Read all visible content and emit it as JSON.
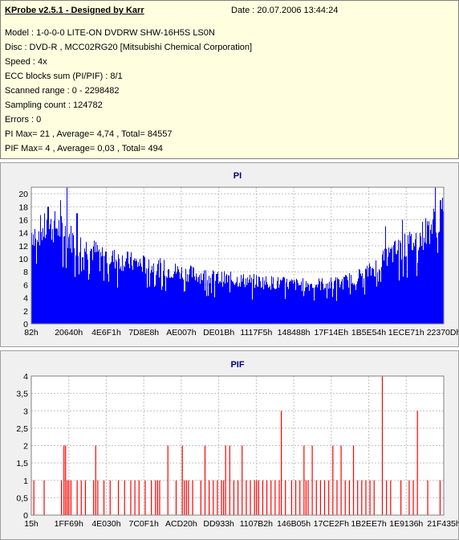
{
  "header": {
    "title": "KProbe v2.5.1 - Designed by Karr",
    "date": "Date : 20.07.2006 13:44:24",
    "lines": [
      "Model : 1-0-0-0 LITE-ON DVDRW SHW-16H5S  LS0N",
      "Disc : DVD-R , MCC02RG20 [Mitsubishi Chemical Corporation]",
      "Speed : 4x",
      "ECC blocks sum (PI/PIF) : 8/1",
      "Scanned range : 0 - 2298482",
      "Sampling count : 124782",
      "Errors : 0",
      "PI Max= 21 , Average= 4,74 , Total= 84557",
      "PIF Max= 4 , Average= 0,03 , Total= 494"
    ]
  },
  "colors": {
    "pi_fill": "#0000ff",
    "pif_fill": "#ff0000",
    "plot_bg": "#ffffff",
    "grid": "#c0c0c0",
    "title": "#000080"
  },
  "chart_data": [
    {
      "type": "bar",
      "title": "PI",
      "ylim": [
        0,
        21
      ],
      "yticks": [
        "0",
        "2",
        "4",
        "6",
        "8",
        "10",
        "12",
        "14",
        "16",
        "18",
        "20"
      ],
      "ytick_values": [
        0,
        2,
        4,
        6,
        8,
        10,
        12,
        14,
        16,
        18,
        20
      ],
      "xticks": [
        "82h",
        "20640h",
        "4E6F1h",
        "7D8E8h",
        "AE007h",
        "DE01Bh",
        "1117F5h",
        "148488h",
        "17F14Eh",
        "1B5E54h",
        "1ECE71h",
        "22370Dh"
      ],
      "grid": true,
      "profile": [
        {
          "x": 0.0,
          "v": 14
        },
        {
          "x": 0.06,
          "v": 15
        },
        {
          "x": 0.12,
          "v": 12
        },
        {
          "x": 0.2,
          "v": 10
        },
        {
          "x": 0.28,
          "v": 9
        },
        {
          "x": 0.36,
          "v": 8
        },
        {
          "x": 0.45,
          "v": 7
        },
        {
          "x": 0.55,
          "v": 6.5
        },
        {
          "x": 0.65,
          "v": 6
        },
        {
          "x": 0.75,
          "v": 6.2
        },
        {
          "x": 0.82,
          "v": 8
        },
        {
          "x": 0.88,
          "v": 11
        },
        {
          "x": 0.94,
          "v": 13
        },
        {
          "x": 1.0,
          "v": 17
        }
      ],
      "spread": 0.35,
      "peaks": [
        {
          "x": 0.085,
          "v": 21
        },
        {
          "x": 0.07,
          "v": 19
        },
        {
          "x": 0.04,
          "v": 18
        },
        {
          "x": 0.11,
          "v": 17
        },
        {
          "x": 0.98,
          "v": 21
        },
        {
          "x": 0.993,
          "v": 19
        },
        {
          "x": 0.9,
          "v": 16
        },
        {
          "x": 0.86,
          "v": 15
        }
      ]
    },
    {
      "type": "bar",
      "title": "PIF",
      "ylim": [
        0,
        4
      ],
      "yticks": [
        "0",
        "0,5",
        "1",
        "1,5",
        "2",
        "2,5",
        "3",
        "3,5",
        "4"
      ],
      "ytick_values": [
        0,
        0.5,
        1,
        1.5,
        2,
        2.5,
        3,
        3.5,
        4
      ],
      "xticks": [
        "15h",
        "1FF69h",
        "4E030h",
        "7C0F1h",
        "ACD20h",
        "DD933h",
        "1107B2h",
        "146B05h",
        "17CE2Fh",
        "1B2EE7h",
        "1E9136h",
        "21F435h"
      ],
      "grid": true,
      "bars": [
        {
          "x": 0.005,
          "v": 1
        },
        {
          "x": 0.03,
          "v": 1
        },
        {
          "x": 0.072,
          "v": 1
        },
        {
          "x": 0.078,
          "v": 2
        },
        {
          "x": 0.082,
          "v": 2
        },
        {
          "x": 0.086,
          "v": 1
        },
        {
          "x": 0.09,
          "v": 1
        },
        {
          "x": 0.095,
          "v": 1
        },
        {
          "x": 0.11,
          "v": 1
        },
        {
          "x": 0.12,
          "v": 1
        },
        {
          "x": 0.13,
          "v": 1
        },
        {
          "x": 0.15,
          "v": 1
        },
        {
          "x": 0.155,
          "v": 2
        },
        {
          "x": 0.16,
          "v": 1
        },
        {
          "x": 0.175,
          "v": 1
        },
        {
          "x": 0.19,
          "v": 1
        },
        {
          "x": 0.21,
          "v": 1
        },
        {
          "x": 0.225,
          "v": 1
        },
        {
          "x": 0.24,
          "v": 1
        },
        {
          "x": 0.25,
          "v": 1
        },
        {
          "x": 0.26,
          "v": 1
        },
        {
          "x": 0.275,
          "v": 1
        },
        {
          "x": 0.29,
          "v": 1
        },
        {
          "x": 0.3,
          "v": 1
        },
        {
          "x": 0.305,
          "v": 1
        },
        {
          "x": 0.31,
          "v": 1
        },
        {
          "x": 0.33,
          "v": 2
        },
        {
          "x": 0.35,
          "v": 1
        },
        {
          "x": 0.365,
          "v": 2
        },
        {
          "x": 0.37,
          "v": 1
        },
        {
          "x": 0.375,
          "v": 1
        },
        {
          "x": 0.38,
          "v": 1
        },
        {
          "x": 0.39,
          "v": 1
        },
        {
          "x": 0.41,
          "v": 1
        },
        {
          "x": 0.42,
          "v": 2
        },
        {
          "x": 0.43,
          "v": 1
        },
        {
          "x": 0.44,
          "v": 1
        },
        {
          "x": 0.45,
          "v": 1
        },
        {
          "x": 0.46,
          "v": 1
        },
        {
          "x": 0.465,
          "v": 1
        },
        {
          "x": 0.47,
          "v": 2
        },
        {
          "x": 0.48,
          "v": 2
        },
        {
          "x": 0.49,
          "v": 1
        },
        {
          "x": 0.5,
          "v": 1
        },
        {
          "x": 0.51,
          "v": 2
        },
        {
          "x": 0.52,
          "v": 1
        },
        {
          "x": 0.53,
          "v": 1
        },
        {
          "x": 0.54,
          "v": 1
        },
        {
          "x": 0.545,
          "v": 1
        },
        {
          "x": 0.55,
          "v": 1
        },
        {
          "x": 0.56,
          "v": 1
        },
        {
          "x": 0.57,
          "v": 1
        },
        {
          "x": 0.58,
          "v": 1
        },
        {
          "x": 0.59,
          "v": 1
        },
        {
          "x": 0.6,
          "v": 1
        },
        {
          "x": 0.605,
          "v": 3
        },
        {
          "x": 0.615,
          "v": 1
        },
        {
          "x": 0.63,
          "v": 1
        },
        {
          "x": 0.64,
          "v": 1
        },
        {
          "x": 0.65,
          "v": 1
        },
        {
          "x": 0.66,
          "v": 2
        },
        {
          "x": 0.665,
          "v": 1
        },
        {
          "x": 0.67,
          "v": 1
        },
        {
          "x": 0.68,
          "v": 2
        },
        {
          "x": 0.69,
          "v": 1
        },
        {
          "x": 0.7,
          "v": 1
        },
        {
          "x": 0.71,
          "v": 1
        },
        {
          "x": 0.72,
          "v": 1
        },
        {
          "x": 0.73,
          "v": 2
        },
        {
          "x": 0.74,
          "v": 1
        },
        {
          "x": 0.75,
          "v": 2
        },
        {
          "x": 0.76,
          "v": 1
        },
        {
          "x": 0.77,
          "v": 1
        },
        {
          "x": 0.78,
          "v": 2
        },
        {
          "x": 0.79,
          "v": 1
        },
        {
          "x": 0.8,
          "v": 1
        },
        {
          "x": 0.81,
          "v": 1
        },
        {
          "x": 0.82,
          "v": 1
        },
        {
          "x": 0.83,
          "v": 1
        },
        {
          "x": 0.85,
          "v": 4
        },
        {
          "x": 0.86,
          "v": 1
        },
        {
          "x": 0.87,
          "v": 1
        },
        {
          "x": 0.895,
          "v": 1
        },
        {
          "x": 0.915,
          "v": 1
        },
        {
          "x": 0.925,
          "v": 1
        },
        {
          "x": 0.935,
          "v": 3
        },
        {
          "x": 0.96,
          "v": 1
        },
        {
          "x": 0.99,
          "v": 1
        }
      ]
    }
  ]
}
